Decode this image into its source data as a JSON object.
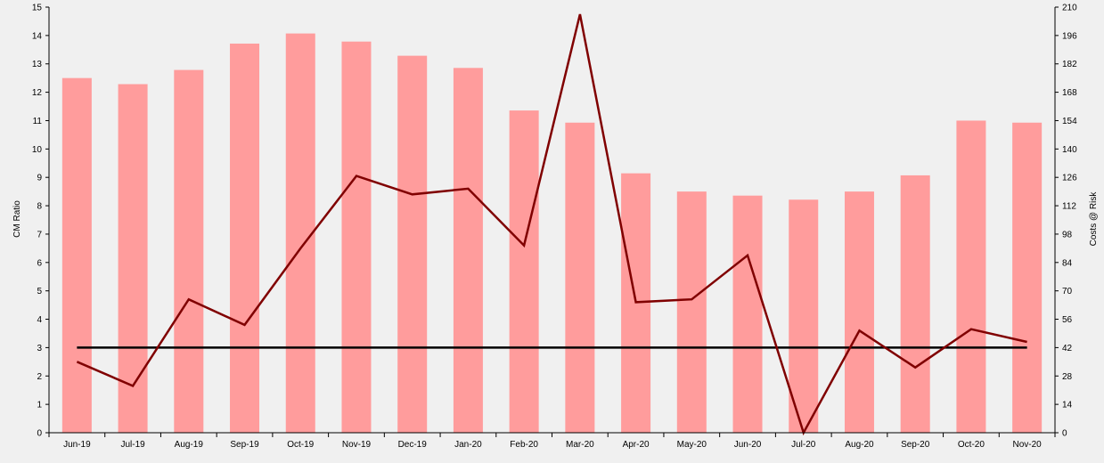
{
  "chart_data": {
    "type": "bar",
    "categories": [
      "Jun-19",
      "Jul-19",
      "Aug-19",
      "Sep-19",
      "Oct-19",
      "Nov-19",
      "Dec-19",
      "Jan-20",
      "Feb-20",
      "Mar-20",
      "Apr-20",
      "May-20",
      "Jun-20",
      "Jul-20",
      "Aug-20",
      "Sep-20",
      "Oct-20",
      "Nov-20"
    ],
    "left_axis": {
      "label": "CM Ratio",
      "range": [
        0,
        15
      ],
      "ticks": [
        "0",
        "1",
        "2",
        "3",
        "4",
        "5",
        "6",
        "7",
        "8",
        "9",
        "10",
        "11",
        "12",
        "13",
        "14",
        "15"
      ]
    },
    "right_axis": {
      "label": "Costs @ Risk",
      "range": [
        0,
        210
      ],
      "ticks": [
        "0",
        "14",
        "28",
        "42",
        "56",
        "70",
        "84",
        "98",
        "112",
        "126",
        "140",
        "154",
        "168",
        "182",
        "196",
        "210"
      ]
    },
    "series": [
      {
        "type": "bar",
        "axis": "right",
        "color": "#ff9c9c",
        "values": [
          175,
          172,
          179,
          192,
          197,
          193,
          186,
          180,
          159,
          153,
          128,
          119,
          117,
          115,
          119,
          127,
          154,
          153
        ]
      },
      {
        "type": "line",
        "axis": "left",
        "color": "#800000",
        "values": [
          2.5,
          1.65,
          4.7,
          3.8,
          6.5,
          9.05,
          8.4,
          8.6,
          6.6,
          14.75,
          4.6,
          4.7,
          6.25,
          0,
          3.6,
          2.3,
          3.65,
          3.2
        ]
      },
      {
        "type": "reference-line",
        "axis": "left",
        "color": "#000000",
        "value": 3
      }
    ],
    "grid": false
  }
}
